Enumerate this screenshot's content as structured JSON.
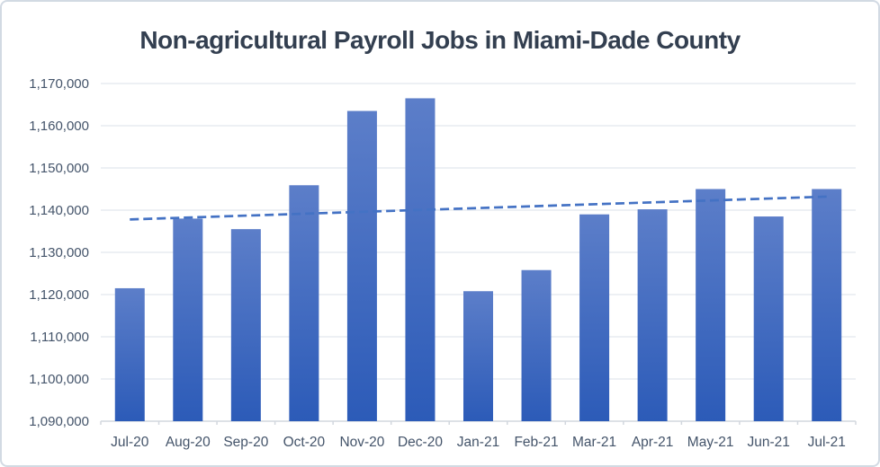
{
  "chart": {
    "title": "Non-agricultural Payroll Jobs in Miami-Dade County"
  },
  "chart_data": {
    "type": "bar",
    "title": "Non-agricultural Payroll Jobs in Miami-Dade County",
    "categories": [
      "Jul-20",
      "Aug-20",
      "Sep-20",
      "Oct-20",
      "Nov-20",
      "Dec-20",
      "Jan-21",
      "Feb-21",
      "Mar-21",
      "Apr-21",
      "May-21",
      "Jun-21",
      "Jul-21"
    ],
    "values": [
      1121500,
      1138000,
      1135500,
      1145900,
      1163500,
      1166500,
      1120800,
      1125800,
      1139000,
      1140200,
      1145000,
      1138500,
      1145000
    ],
    "xlabel": "",
    "ylabel": "",
    "ylim": [
      1090000,
      1170000
    ],
    "ytick_interval": 10000,
    "ytick_labels": [
      "1,090,000",
      "1,100,000",
      "1,110,000",
      "1,120,000",
      "1,130,000",
      "1,140,000",
      "1,150,000",
      "1,160,000",
      "1,170,000"
    ],
    "grid": true,
    "legend": "none",
    "trendline": {
      "type": "linear",
      "style": "dashed",
      "start_value": 1137800,
      "end_value": 1143200,
      "color": "#4472C4"
    },
    "colors": {
      "bar_gradient_top": "#5C7EC9",
      "bar_gradient_bottom": "#2C5BB8",
      "title_text": "#333F50",
      "axis_text": "#44546A",
      "gridline": "#E2E7EE",
      "axis_line": "#D2D7DE"
    }
  }
}
